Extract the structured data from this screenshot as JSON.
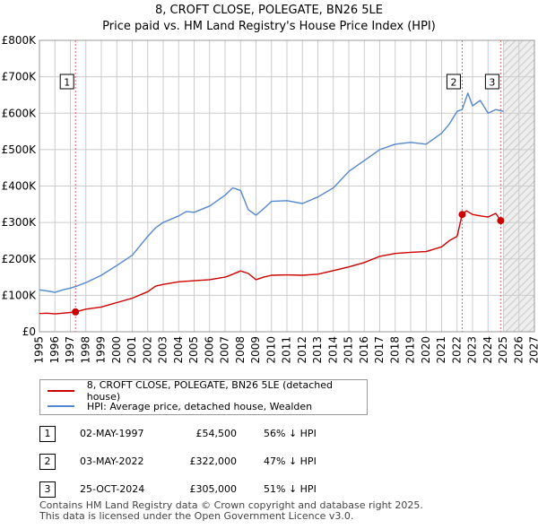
{
  "title_line1": "8, CROFT CLOSE, POLEGATE, BN26 5LE",
  "title_line2": "Price paid vs. HM Land Registry's House Price Index (HPI)",
  "legend": {
    "property_label": "8, CROFT CLOSE, POLEGATE, BN26 5LE (detached house)",
    "hpi_label": "HPI: Average price, detached house, Wealden"
  },
  "sales": [
    {
      "num": "1",
      "date": "02-MAY-1997",
      "price": "£54,500",
      "hpi": "56% ↓ HPI"
    },
    {
      "num": "2",
      "date": "03-MAY-2022",
      "price": "£322,000",
      "hpi": "47% ↓ HPI"
    },
    {
      "num": "3",
      "date": "25-OCT-2024",
      "price": "£305,000",
      "hpi": "51% ↓ HPI"
    }
  ],
  "footer_line1": "Contains HM Land Registry data © Crown copyright and database right 2025.",
  "footer_line2": "This data is licensed under the Open Government Licence v3.0.",
  "colors": {
    "property": "#cc0000",
    "hpi": "#5588cc",
    "grid": "#cccccc",
    "marker_line": "#dd6666"
  },
  "chart_data": {
    "type": "line",
    "title": "8, CROFT CLOSE, POLEGATE, BN26 5LE — Price paid vs. HM Land Registry's House Price Index (HPI)",
    "xlabel": "",
    "ylabel": "",
    "xlim": [
      1995,
      2027
    ],
    "ylim": [
      0,
      800000
    ],
    "x_ticks": [
      "1995",
      "1996",
      "1997",
      "1998",
      "1999",
      "2000",
      "2001",
      "2002",
      "2003",
      "2004",
      "2005",
      "2006",
      "2007",
      "2008",
      "2009",
      "2010",
      "2011",
      "2012",
      "2013",
      "2014",
      "2015",
      "2016",
      "2017",
      "2018",
      "2019",
      "2020",
      "2021",
      "2022",
      "2023",
      "2024",
      "2025",
      "2026",
      "2027"
    ],
    "y_ticks": [
      {
        "value": 0,
        "label": "£0"
      },
      {
        "value": 100000,
        "label": "£100K"
      },
      {
        "value": 200000,
        "label": "£200K"
      },
      {
        "value": 300000,
        "label": "£300K"
      },
      {
        "value": 400000,
        "label": "£400K"
      },
      {
        "value": 500000,
        "label": "£500K"
      },
      {
        "value": 600000,
        "label": "£600K"
      },
      {
        "value": 700000,
        "label": "£700K"
      },
      {
        "value": 800000,
        "label": "£800K"
      }
    ],
    "forecast_start": 2025.0,
    "series": [
      {
        "name": "8, CROFT CLOSE, POLEGATE, BN26 5LE (detached house)",
        "x": [
          1995,
          1995.5,
          1996,
          1996.5,
          1997,
          1997.33,
          1998,
          1999,
          2000,
          2001,
          2002,
          2002.5,
          2003,
          2004,
          2005,
          2006,
          2007,
          2007.5,
          2008,
          2008.5,
          2009,
          2009.5,
          2010,
          2011,
          2012,
          2013,
          2014,
          2015,
          2016,
          2017,
          2018,
          2019,
          2020,
          2021,
          2021.5,
          2022,
          2022.33,
          2022.6,
          2023,
          2023.5,
          2024,
          2024.5,
          2024.82,
          2025
        ],
        "values": [
          50000,
          51000,
          49000,
          51000,
          53000,
          54500,
          62000,
          68000,
          80000,
          92000,
          110000,
          125000,
          130000,
          137000,
          140000,
          143000,
          150000,
          158000,
          167000,
          160000,
          143000,
          150000,
          155000,
          156000,
          155000,
          158000,
          168000,
          178000,
          190000,
          207000,
          215000,
          218000,
          220000,
          233000,
          250000,
          262000,
          322000,
          332000,
          322000,
          318000,
          315000,
          325000,
          305000,
          300000
        ]
      },
      {
        "name": "HPI: Average price, detached house, Wealden",
        "x": [
          1995,
          1995.5,
          1996,
          1996.5,
          1997,
          1997.33,
          1998,
          1999,
          2000,
          2001,
          2002,
          2002.5,
          2003,
          2004,
          2004.5,
          2005,
          2006,
          2007,
          2007.5,
          2008,
          2008.5,
          2009,
          2009.5,
          2010,
          2011,
          2012,
          2013,
          2014,
          2015,
          2016,
          2017,
          2018,
          2019,
          2020,
          2021,
          2021.5,
          2022,
          2022.33,
          2022.7,
          2023,
          2023.5,
          2024,
          2024.5,
          2025
        ],
        "values": [
          115000,
          112000,
          108000,
          115000,
          120000,
          124000,
          135000,
          155000,
          182000,
          210000,
          262000,
          285000,
          300000,
          318000,
          330000,
          328000,
          345000,
          375000,
          395000,
          388000,
          335000,
          320000,
          338000,
          358000,
          360000,
          352000,
          370000,
          395000,
          440000,
          470000,
          500000,
          515000,
          520000,
          515000,
          545000,
          570000,
          605000,
          610000,
          655000,
          620000,
          635000,
          600000,
          610000,
          605000
        ]
      }
    ],
    "sale_markers": [
      {
        "label": "1",
        "x": 1997.33,
        "value": 54500
      },
      {
        "label": "2",
        "x": 2022.33,
        "value": 322000
      },
      {
        "label": "3",
        "x": 2024.82,
        "value": 305000
      }
    ]
  }
}
